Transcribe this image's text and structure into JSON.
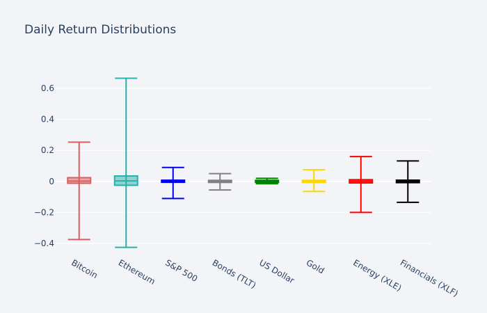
{
  "chart_data": {
    "type": "box",
    "title": "Daily Return Distributions",
    "xlabel": "",
    "ylabel": "",
    "ylim": [
      -0.43,
      0.72
    ],
    "yticks": [
      0.6,
      0.4,
      0.2,
      0,
      -0.2,
      -0.4
    ],
    "ytick_labels": [
      "0.6",
      "0.4",
      "0.2",
      "0",
      "−0.2",
      "−0.4"
    ],
    "grid": true,
    "legend": "none",
    "series": [
      {
        "category": "Bitcoin",
        "color": "#d95f5f",
        "min": -0.375,
        "q1": -0.012,
        "median": 0.002,
        "q3": 0.024,
        "max": 0.253
      },
      {
        "category": "Ethereum",
        "color": "#2ab0aa",
        "min": -0.425,
        "q1": -0.025,
        "median": 0.003,
        "q3": 0.035,
        "max": 0.665
      },
      {
        "category": "S&P 500",
        "color": "#0000ee",
        "min": -0.11,
        "q1": -0.005,
        "median": 0.001,
        "q3": 0.006,
        "max": 0.09
      },
      {
        "category": "Bonds (TLT)",
        "color": "#808080",
        "min": -0.055,
        "q1": -0.006,
        "median": 0.0,
        "q3": 0.006,
        "max": 0.05
      },
      {
        "category": "US Dollar",
        "color": "#008000",
        "min": -0.015,
        "q1": -0.003,
        "median": 0.0,
        "q3": 0.003,
        "max": 0.02
      },
      {
        "category": "Gold",
        "color": "#ffd700",
        "min": -0.065,
        "q1": -0.005,
        "median": 0.0,
        "q3": 0.006,
        "max": 0.075
      },
      {
        "category": "Energy (XLE)",
        "color": "#ff0000",
        "min": -0.2,
        "q1": -0.01,
        "median": 0.001,
        "q3": 0.011,
        "max": 0.16
      },
      {
        "category": "Financials (XLF)",
        "color": "#000000",
        "min": -0.135,
        "q1": -0.008,
        "median": 0.001,
        "q3": 0.008,
        "max": 0.132
      }
    ]
  }
}
